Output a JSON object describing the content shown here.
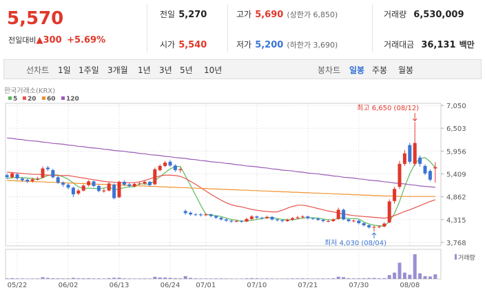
{
  "header": {
    "price": "5,570",
    "change_label": "전일대비",
    "change": "▲300",
    "change_pct": "+5.69%",
    "stats": [
      {
        "label": "전일",
        "value": "5,270"
      },
      {
        "label": "고가",
        "value": "5,690",
        "note": "(상한가 6,850)"
      },
      {
        "label": "거래량",
        "value": "6,530,009"
      },
      {
        "label": "시가",
        "value": "5,540"
      },
      {
        "label": "저가",
        "value": "5,200",
        "note": "(하한가 3,690)"
      },
      {
        "label": "거래대금",
        "value": "36,131",
        "unit": "백만"
      }
    ]
  },
  "toolbar": {
    "line_group": "선차트",
    "line_tabs": [
      "1일",
      "1주일",
      "3개월",
      "1년",
      "3년",
      "5년",
      "10년"
    ],
    "candle_group": "봉차트",
    "candle_tabs": [
      "일봉",
      "주봉",
      "월봉"
    ],
    "active": "일봉"
  },
  "chart_data": {
    "type": "candlestick",
    "source": "한국거래소(KRX)",
    "up_color": "#e0372a",
    "down_color": "#3b74d6",
    "categories": [
      null,
      null,
      "05/22",
      null,
      null,
      null,
      null,
      null,
      null,
      null,
      null,
      null,
      "06/02",
      null,
      null,
      null,
      null,
      null,
      null,
      null,
      null,
      null,
      "06/13",
      null,
      null,
      null,
      null,
      null,
      null,
      null,
      null,
      null,
      "06/24",
      null,
      null,
      null,
      null,
      null,
      null,
      "07/01",
      null,
      null,
      null,
      null,
      null,
      null,
      null,
      null,
      null,
      "07/10",
      null,
      null,
      null,
      null,
      null,
      null,
      null,
      null,
      null,
      "07/21",
      null,
      null,
      null,
      null,
      null,
      null,
      null,
      null,
      null,
      "07/30",
      null,
      null,
      null,
      null,
      null,
      null,
      null,
      null,
      null,
      "08/08",
      null,
      null,
      null,
      null,
      null
    ],
    "open": [
      5380,
      5330,
      5400,
      5300,
      5270,
      5240,
      5280,
      5320,
      5560,
      5500,
      5330,
      5200,
      5150,
      5080,
      4940,
      5010,
      5140,
      5230,
      5120,
      4990,
      5010,
      5150,
      4850,
      5220,
      5160,
      5110,
      5170,
      5180,
      5220,
      5160,
      5500,
      5600,
      5700,
      5610,
      5500,
      4520,
      4480,
      4440,
      4440,
      4420,
      4440,
      4400,
      4360,
      4320,
      4290,
      4270,
      4280,
      4270,
      4330,
      4390,
      4360,
      4350,
      4380,
      4320,
      4300,
      4280,
      4310,
      4350,
      4370,
      4390,
      4350,
      4340,
      4310,
      4280,
      4280,
      4330,
      4550,
      4320,
      4280,
      4290,
      4230,
      4180,
      4130,
      4140,
      4150,
      4250,
      4760,
      5100,
      5650,
      6100,
      5650,
      5800,
      5600,
      5480,
      5540
    ],
    "high": [
      5420,
      5460,
      5430,
      5330,
      5300,
      5320,
      5340,
      5590,
      5600,
      5530,
      5360,
      5230,
      5180,
      5100,
      5050,
      5160,
      5260,
      5250,
      5150,
      5060,
      5210,
      5180,
      5250,
      5260,
      5190,
      5210,
      5220,
      5250,
      5240,
      5560,
      5640,
      5720,
      5740,
      5640,
      5560,
      4560,
      4510,
      4470,
      4470,
      4470,
      4460,
      4420,
      4380,
      4340,
      4310,
      4310,
      4300,
      4360,
      4420,
      4410,
      4380,
      4410,
      4400,
      4340,
      4320,
      4340,
      4380,
      4400,
      4420,
      4410,
      4370,
      4360,
      4330,
      4310,
      4350,
      4600,
      4580,
      4340,
      4320,
      4310,
      4250,
      4200,
      4170,
      4180,
      4250,
      4800,
      5100,
      5720,
      5980,
      6150,
      6650,
      5850,
      5640,
      5520,
      5690
    ],
    "low": [
      5290,
      5300,
      5260,
      5220,
      5190,
      5200,
      5250,
      5300,
      5480,
      5300,
      5170,
      5100,
      5040,
      4850,
      4900,
      4990,
      5110,
      5090,
      4970,
      4960,
      4990,
      4800,
      4830,
      5120,
      5080,
      5090,
      5140,
      5150,
      5110,
      5140,
      5470,
      5570,
      5580,
      5460,
      5440,
      4430,
      4410,
      4400,
      4390,
      4400,
      4370,
      4330,
      4290,
      4260,
      4240,
      4250,
      4240,
      4250,
      4310,
      4330,
      4320,
      4330,
      4290,
      4270,
      4250,
      4260,
      4290,
      4320,
      4340,
      4320,
      4310,
      4280,
      4250,
      4250,
      4260,
      4310,
      4300,
      4250,
      4250,
      4200,
      4150,
      4100,
      4030,
      4110,
      4130,
      4230,
      4700,
      5050,
      5600,
      5650,
      5600,
      5580,
      5380,
      5230,
      5200
    ],
    "close": [
      5330,
      5420,
      5300,
      5260,
      5230,
      5280,
      5300,
      5540,
      5520,
      5330,
      5200,
      5150,
      5080,
      4920,
      5010,
      5130,
      5230,
      5120,
      5000,
      5010,
      5180,
      4830,
      5220,
      5150,
      5120,
      5170,
      5180,
      5220,
      5140,
      5520,
      5600,
      5680,
      5610,
      5500,
      5520,
      4470,
      4440,
      4430,
      4420,
      4440,
      4400,
      4360,
      4320,
      4290,
      4270,
      4280,
      4270,
      4330,
      4390,
      4360,
      4350,
      4380,
      4320,
      4300,
      4280,
      4310,
      4350,
      4370,
      4390,
      4350,
      4340,
      4310,
      4280,
      4280,
      4320,
      4550,
      4320,
      4280,
      4290,
      4230,
      4180,
      4130,
      4140,
      4150,
      4220,
      4750,
      5050,
      5650,
      5900,
      5700,
      6150,
      5650,
      5420,
      5270,
      5570
    ],
    "ylim": [
      3768,
      7050
    ],
    "yticks": [
      {
        "value": 3768,
        "label": "3,768"
      },
      {
        "value": 4315,
        "label": "4,315"
      },
      {
        "value": 4862,
        "label": "4,862"
      },
      {
        "value": 5409,
        "label": "5,409"
      },
      {
        "value": 5956,
        "label": "5,956"
      },
      {
        "value": 6503,
        "label": "6,503"
      },
      {
        "value": 7050,
        "label": "7,050"
      }
    ],
    "grid": true,
    "series": [
      {
        "name": "5",
        "color": "#5cb85c",
        "values": [
          5300,
          5320,
          5330,
          5320,
          5310,
          5300,
          5270,
          5320,
          5370,
          5390,
          5380,
          5340,
          5280,
          5190,
          5100,
          5060,
          5070,
          5060,
          5060,
          5070,
          5100,
          5030,
          5050,
          5080,
          5100,
          5100,
          5170,
          5170,
          5160,
          5250,
          5340,
          5440,
          5530,
          5580,
          5590,
          5360,
          5130,
          4900,
          4660,
          4440,
          4430,
          4410,
          4390,
          4350,
          4320,
          4300,
          4280,
          4280,
          4300,
          4320,
          4340,
          4360,
          4360,
          4340,
          4320,
          4310,
          4310,
          4330,
          4350,
          4360,
          4360,
          4350,
          4330,
          4310,
          4310,
          4350,
          4360,
          4340,
          4340,
          4330,
          4260,
          4210,
          4180,
          4170,
          4160,
          4270,
          4460,
          4750,
          5100,
          5410,
          5650,
          5780,
          5800,
          5700,
          5560
        ]
      },
      {
        "name": "20",
        "color": "#e8524a",
        "values": [
          5450,
          5440,
          5430,
          5420,
          5410,
          5400,
          5400,
          5390,
          5380,
          5380,
          5370,
          5370,
          5370,
          5350,
          5330,
          5310,
          5290,
          5270,
          5250,
          5230,
          5220,
          5210,
          5200,
          5200,
          5200,
          5200,
          5220,
          5250,
          5290,
          5330,
          5360,
          5380,
          5380,
          5370,
          5350,
          5300,
          5230,
          5160,
          5080,
          5000,
          4920,
          4850,
          4780,
          4720,
          4670,
          4640,
          4620,
          4590,
          4560,
          4540,
          4520,
          4510,
          4500,
          4500,
          4540,
          4590,
          4630,
          4660,
          4660,
          4640,
          4610,
          4580,
          4550,
          4520,
          4500,
          4470,
          4450,
          4430,
          4410,
          4400,
          4390,
          4380,
          4370,
          4360,
          4350,
          4370,
          4410,
          4460,
          4510,
          4550,
          4600,
          4650,
          4700,
          4750,
          4790
        ]
      },
      {
        "name": "60",
        "color": "#f0922b",
        "values": [
          5250,
          5250,
          5240,
          5240,
          5230,
          5230,
          5220,
          5220,
          5210,
          5210,
          5200,
          5200,
          5190,
          5190,
          5180,
          5180,
          5170,
          5170,
          5160,
          5160,
          5150,
          5150,
          5140,
          5140,
          5130,
          5130,
          5120,
          5120,
          5110,
          5110,
          5100,
          5100,
          5090,
          5090,
          5080,
          5080,
          5070,
          5070,
          5060,
          5060,
          5050,
          5050,
          5040,
          5040,
          5030,
          5030,
          5020,
          5020,
          5010,
          5010,
          5000,
          5000,
          4990,
          4990,
          4980,
          4980,
          4970,
          4970,
          4960,
          4960,
          4950,
          4950,
          4940,
          4940,
          4930,
          4930,
          4920,
          4920,
          4910,
          4910,
          4900,
          4900,
          4890,
          4890,
          4880,
          4880,
          4880,
          4870,
          4870,
          4870,
          4870,
          4870,
          4870,
          4870,
          4870
        ]
      },
      {
        "name": "120",
        "color": "#9b59b6",
        "values": [
          6270,
          6260,
          6240,
          6230,
          6210,
          6200,
          6190,
          6170,
          6160,
          6140,
          6130,
          6120,
          6100,
          6090,
          6070,
          6060,
          6040,
          6030,
          6020,
          6000,
          5990,
          5970,
          5960,
          5950,
          5930,
          5920,
          5900,
          5890,
          5870,
          5860,
          5850,
          5830,
          5820,
          5800,
          5790,
          5780,
          5760,
          5750,
          5730,
          5720,
          5700,
          5690,
          5680,
          5660,
          5650,
          5630,
          5620,
          5600,
          5590,
          5580,
          5560,
          5550,
          5530,
          5520,
          5500,
          5490,
          5480,
          5460,
          5450,
          5430,
          5420,
          5410,
          5390,
          5380,
          5360,
          5350,
          5330,
          5320,
          5310,
          5290,
          5280,
          5260,
          5250,
          5240,
          5220,
          5210,
          5190,
          5180,
          5170,
          5150,
          5140,
          5120,
          5110,
          5100,
          5090
        ]
      }
    ],
    "annotations": [
      {
        "text": "최고 6,650 (08/12)",
        "color": "#e0372a"
      },
      {
        "text": "최저 4,030 (08/04)",
        "color": "#3b74d6"
      }
    ],
    "volume": {
      "label": "거래량",
      "color": "#9b8fd0",
      "ylim": [
        0,
        40000000
      ],
      "values": [
        900000,
        1200000,
        800000,
        700000,
        600000,
        650000,
        700000,
        2500000,
        1500000,
        1000000,
        900000,
        800000,
        800000,
        1600000,
        1000000,
        900000,
        1100000,
        800000,
        900000,
        700000,
        1200000,
        1700000,
        1800000,
        900000,
        700000,
        600000,
        700000,
        800000,
        700000,
        3000000,
        2200000,
        2000000,
        1500000,
        1100000,
        900000,
        4000000,
        1500000,
        900000,
        800000,
        700000,
        700000,
        800000,
        800000,
        700000,
        600000,
        500000,
        600000,
        900000,
        1200000,
        900000,
        700000,
        800000,
        700000,
        600000,
        600000,
        700000,
        800000,
        800000,
        900000,
        700000,
        600000,
        700000,
        800000,
        700000,
        1000000,
        3200000,
        2500000,
        1100000,
        800000,
        900000,
        1000000,
        1300000,
        1400000,
        900000,
        1100000,
        5500000,
        9000000,
        23000000,
        9000000,
        6000000,
        35000000,
        8000000,
        4000000,
        3500000,
        6530009
      ]
    }
  }
}
